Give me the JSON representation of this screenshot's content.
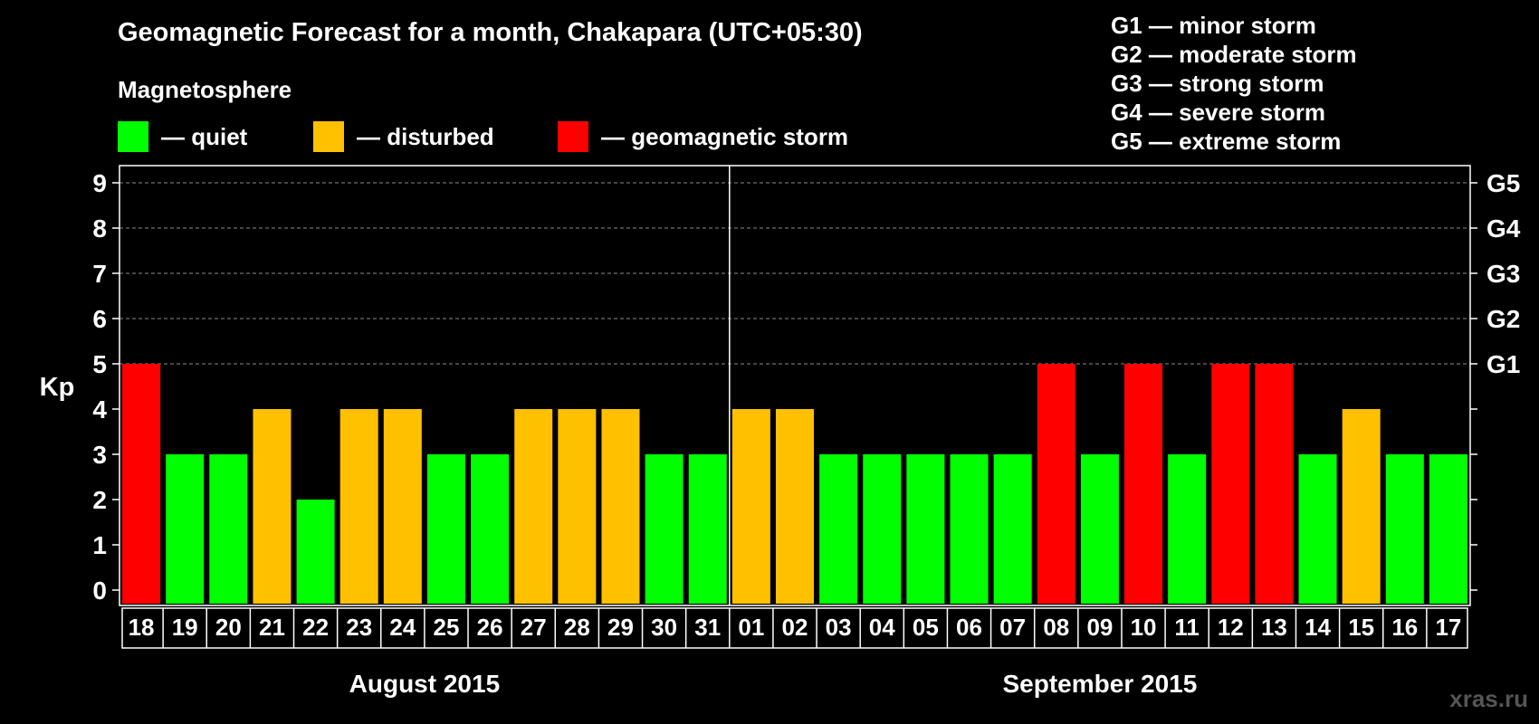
{
  "title": "Geomagnetic Forecast for a month, Chakapara (UTC+05:30)",
  "magnetosphere": {
    "title": "Magnetosphere",
    "items": [
      {
        "label": "— quiet",
        "color": "#00ff00"
      },
      {
        "label": "— disturbed",
        "color": "#ffc000"
      },
      {
        "label": "— geomagnetic storm",
        "color": "#ff0000"
      }
    ]
  },
  "storm_levels": [
    "G1 — minor storm",
    "G2 — moderate storm",
    "G3 — strong storm",
    "G4 — severe storm",
    "G5 — extreme storm"
  ],
  "watermark": "xras.ru",
  "colors": {
    "quiet": "#00ff00",
    "disturbed": "#ffc000",
    "storm": "#ff0000"
  },
  "chart_data": {
    "type": "bar",
    "ylabel": "Kp",
    "ylim": [
      0,
      9
    ],
    "yticks": [
      0,
      1,
      2,
      3,
      4,
      5,
      6,
      7,
      8,
      9
    ],
    "right_ticks": [
      {
        "value": 5,
        "label": "G1"
      },
      {
        "value": 6,
        "label": "G2"
      },
      {
        "value": 7,
        "label": "G3"
      },
      {
        "value": 8,
        "label": "G4"
      },
      {
        "value": 9,
        "label": "G5"
      }
    ],
    "grid": true,
    "categories": [
      "18",
      "19",
      "20",
      "21",
      "22",
      "23",
      "24",
      "25",
      "26",
      "27",
      "28",
      "29",
      "30",
      "31",
      "01",
      "02",
      "03",
      "04",
      "05",
      "06",
      "07",
      "08",
      "09",
      "10",
      "11",
      "12",
      "13",
      "14",
      "15",
      "16",
      "17"
    ],
    "values": [
      5,
      3,
      3,
      4,
      2,
      4,
      4,
      3,
      3,
      4,
      4,
      4,
      3,
      3,
      4,
      4,
      3,
      3,
      3,
      3,
      3,
      5,
      3,
      5,
      3,
      5,
      5,
      3,
      4,
      3,
      3
    ],
    "months": [
      {
        "label": "August 2015",
        "days": 14
      },
      {
        "label": "September 2015",
        "days": 17
      }
    ]
  }
}
